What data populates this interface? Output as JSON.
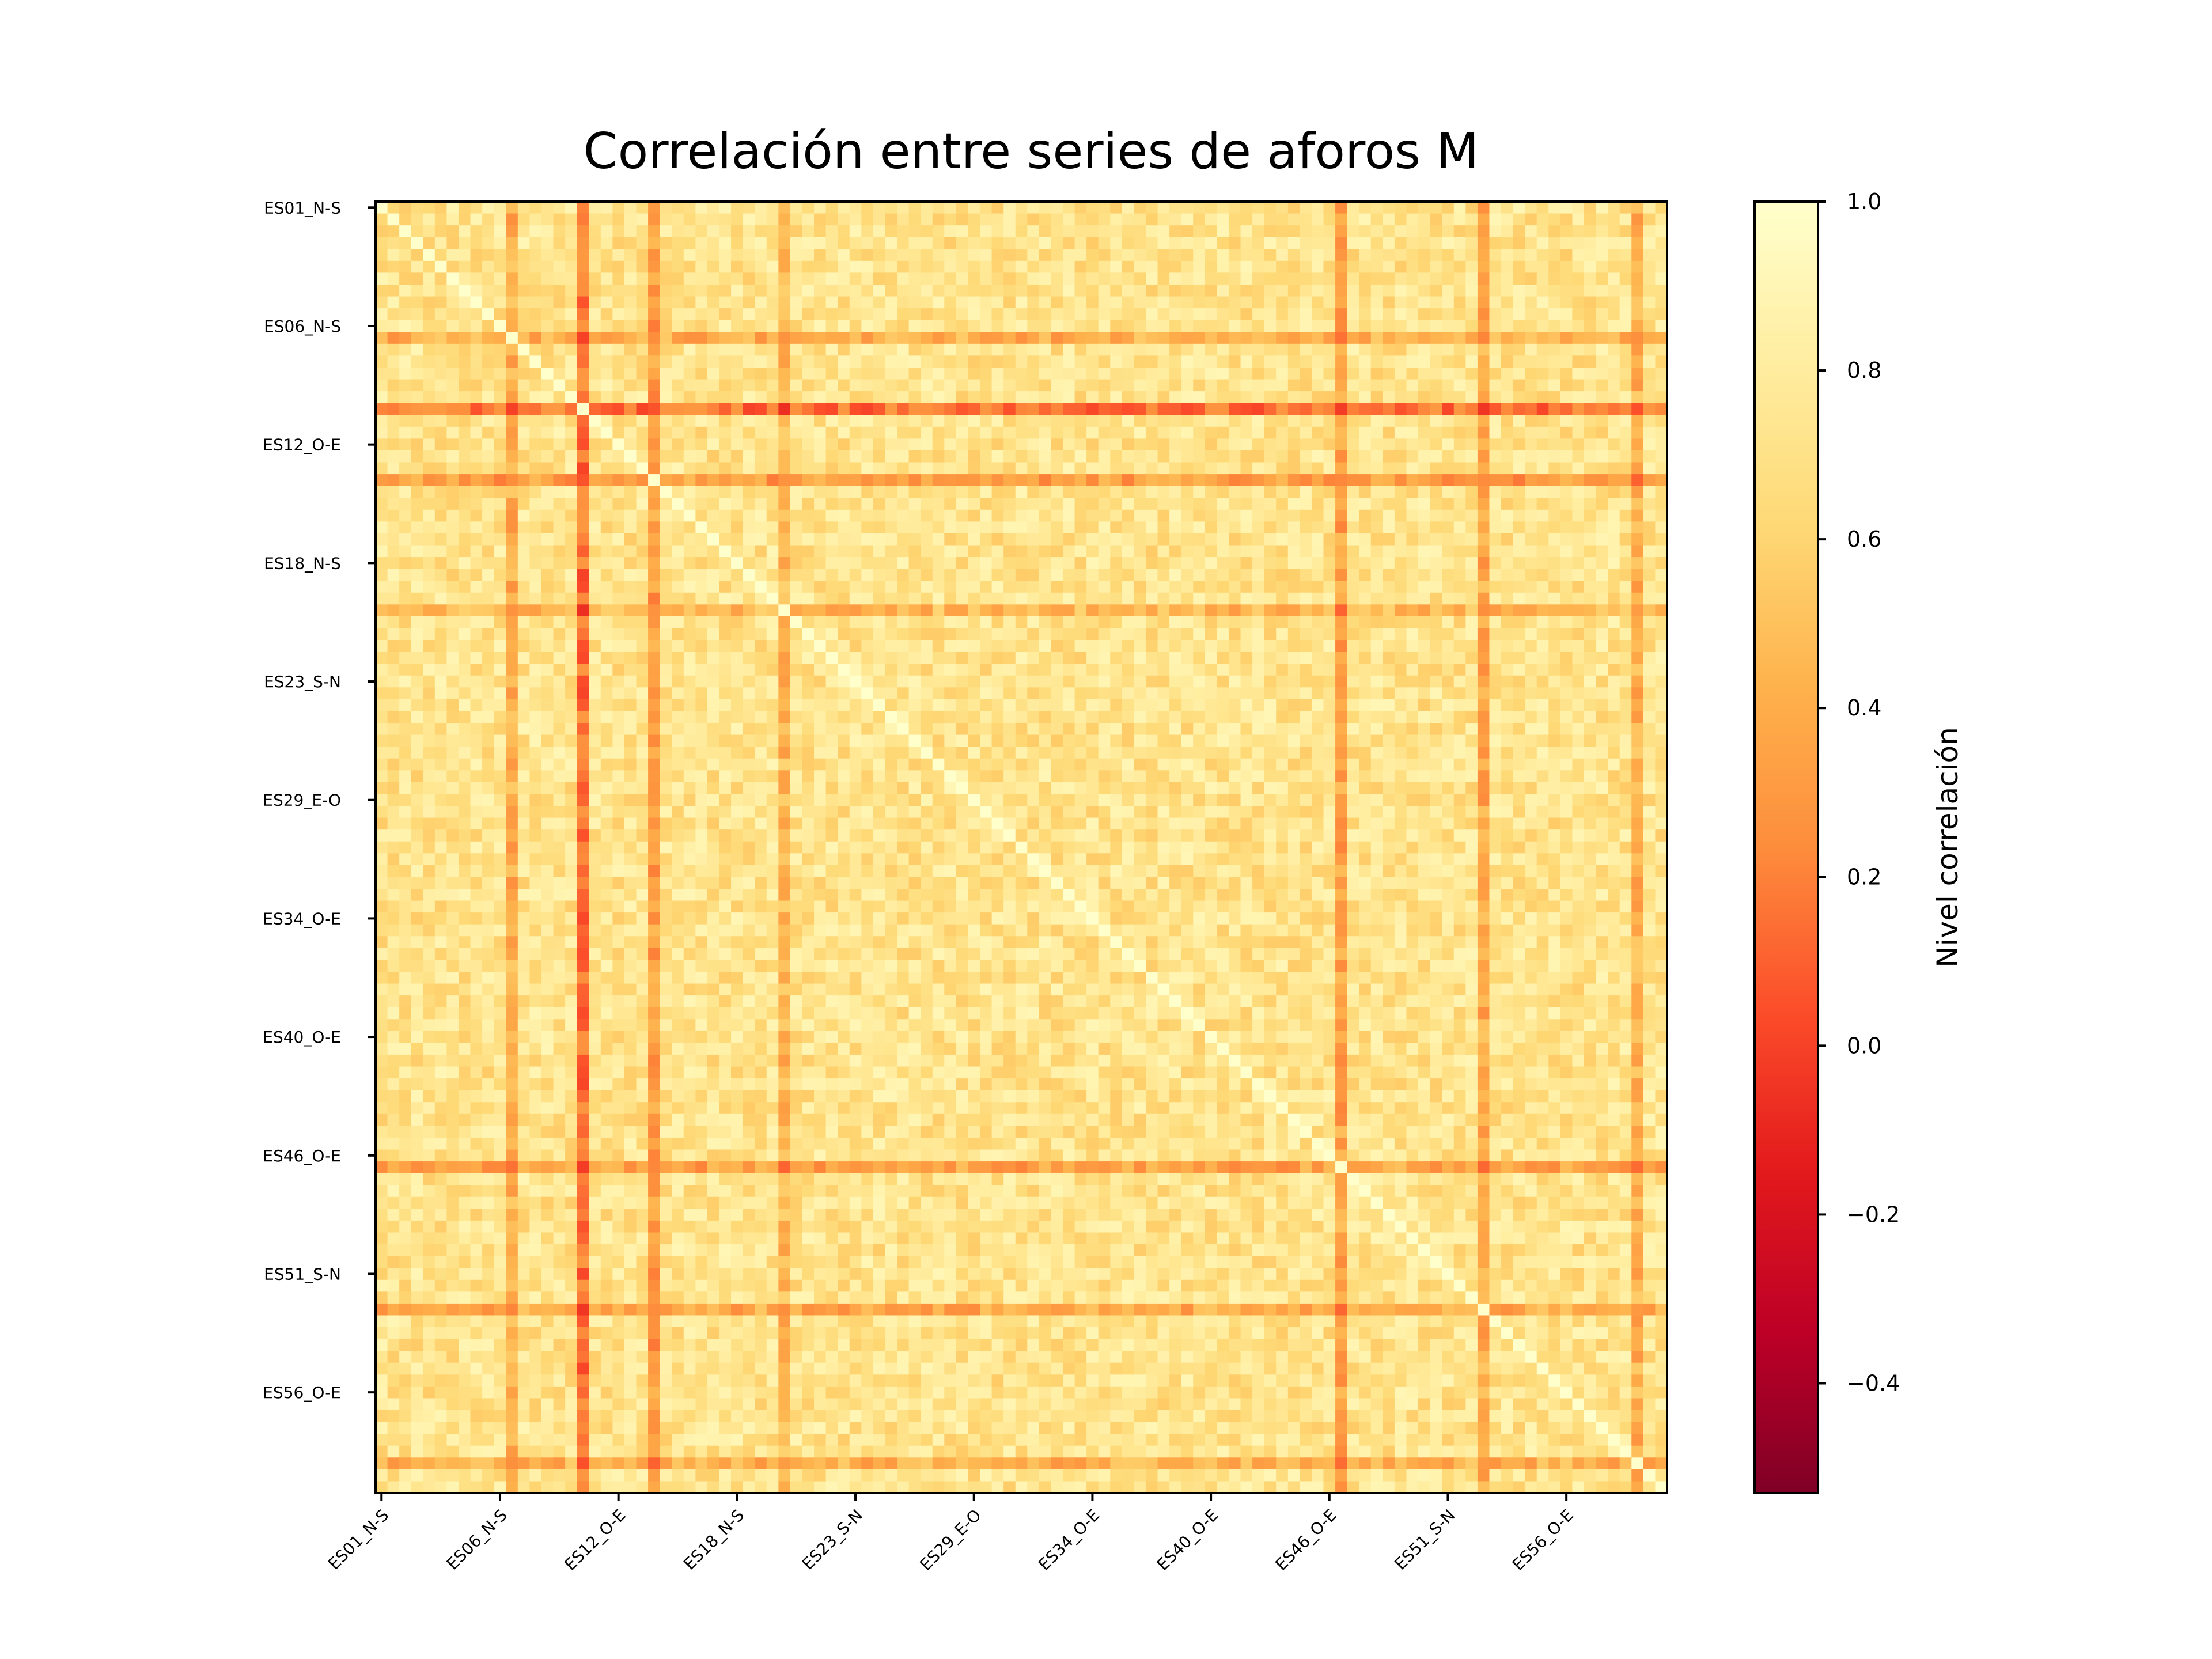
{
  "chart_data": {
    "type": "heatmap",
    "title": "Correlación entre series de aforos M",
    "xlabel": "",
    "ylabel": "",
    "n_series": 109,
    "x_tick_labels": [
      "ES01_N-S",
      "ES06_N-S",
      "ES12_O-E",
      "ES18_N-S",
      "ES23_S-N",
      "ES29_E-O",
      "ES34_O-E",
      "ES40_O-E",
      "ES46_O-E",
      "ES51_S-N",
      "ES56_O-E"
    ],
    "y_tick_labels": [
      "ES01_N-S",
      "ES06_N-S",
      "ES12_O-E",
      "ES18_N-S",
      "ES23_S-N",
      "ES29_E-O",
      "ES34_O-E",
      "ES40_O-E",
      "ES46_O-E",
      "ES51_S-N",
      "ES56_O-E"
    ],
    "tick_indices": [
      0,
      10,
      20,
      30,
      40,
      50,
      60,
      70,
      80,
      90,
      100
    ],
    "colorbar": {
      "label": "Nivel correlación",
      "vmin": -0.53,
      "vmax": 1.0,
      "ticks": [
        1.0,
        0.8,
        0.6,
        0.4,
        0.2,
        0.0,
        -0.2,
        -0.4
      ],
      "tick_labels": [
        "1.0",
        "0.8",
        "0.6",
        "0.4",
        "0.2",
        "0.0",
        "−0.2",
        "−0.4"
      ],
      "colormap": "YlOrRd_r"
    },
    "weak_series": [
      {
        "index": 11,
        "r": 0.4
      },
      {
        "index": 17,
        "r": 0.15
      },
      {
        "index": 23,
        "r": 0.32
      },
      {
        "index": 34,
        "r": 0.45
      },
      {
        "index": 81,
        "r": 0.35
      },
      {
        "index": 93,
        "r": 0.38
      },
      {
        "index": 106,
        "r": 0.42
      }
    ],
    "typical_correlation_range": [
      0.55,
      0.9
    ],
    "diagonal_value": 1.0
  }
}
